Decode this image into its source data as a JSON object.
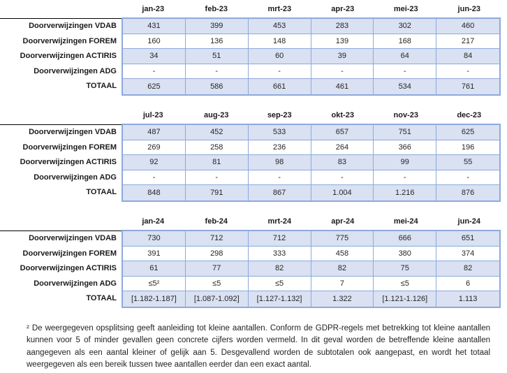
{
  "colors": {
    "cell_fill": "#d9e1f2",
    "table_border": "#8ea9db",
    "header_underline": "#000000",
    "page_background": "#ffffff",
    "text": "#1a1a1a"
  },
  "tables": [
    {
      "months": [
        "jan-23",
        "feb-23",
        "mrt-23",
        "apr-23",
        "mei-23",
        "jun-23"
      ],
      "rows": [
        {
          "label": "Doorverwijzingen VDAB",
          "values": [
            "431",
            "399",
            "453",
            "283",
            "302",
            "460"
          ]
        },
        {
          "label": "Doorverwijzingen FOREM",
          "values": [
            "160",
            "136",
            "148",
            "139",
            "168",
            "217"
          ]
        },
        {
          "label": "Doorverwijzingen ACTIRIS",
          "values": [
            "34",
            "51",
            "60",
            "39",
            "64",
            "84"
          ]
        },
        {
          "label": "Doorverwijzingen ADG",
          "values": [
            "-",
            "-",
            "-",
            "-",
            "-",
            "-"
          ]
        },
        {
          "label": "TOTAAL",
          "values": [
            "625",
            "586",
            "661",
            "461",
            "534",
            "761"
          ]
        }
      ]
    },
    {
      "months": [
        "jul-23",
        "aug-23",
        "sep-23",
        "okt-23",
        "nov-23",
        "dec-23"
      ],
      "rows": [
        {
          "label": "Doorverwijzingen VDAB",
          "values": [
            "487",
            "452",
            "533",
            "657",
            "751",
            "625"
          ]
        },
        {
          "label": "Doorverwijzingen FOREM",
          "values": [
            "269",
            "258",
            "236",
            "264",
            "366",
            "196"
          ]
        },
        {
          "label": "Doorverwijzingen ACTIRIS",
          "values": [
            "92",
            "81",
            "98",
            "83",
            "99",
            "55"
          ]
        },
        {
          "label": "Doorverwijzingen ADG",
          "values": [
            "-",
            "-",
            "-",
            "-",
            "-",
            "-"
          ]
        },
        {
          "label": "TOTAAL",
          "values": [
            "848",
            "791",
            "867",
            "1.004",
            "1.216",
            "876"
          ]
        }
      ]
    },
    {
      "months": [
        "jan-24",
        "feb-24",
        "mrt-24",
        "apr-24",
        "mei-24",
        "jun-24"
      ],
      "rows": [
        {
          "label": "Doorverwijzingen VDAB",
          "values": [
            "730",
            "712",
            "712",
            "775",
            "666",
            "651"
          ]
        },
        {
          "label": "Doorverwijzingen FOREM",
          "values": [
            "391",
            "298",
            "333",
            "458",
            "380",
            "374"
          ]
        },
        {
          "label": "Doorverwijzingen ACTIRIS",
          "values": [
            "61",
            "77",
            "82",
            "82",
            "75",
            "82"
          ]
        },
        {
          "label": "Doorverwijzingen ADG",
          "values": [
            "≤5²",
            "≤5",
            "≤5",
            "7",
            "≤5",
            "6"
          ]
        },
        {
          "label": "TOTAAL",
          "values": [
            "[1.182-1.187]",
            "[1.087-1.092]",
            "[1.127-1.132]",
            "1.322",
            "[1.121-1.126]",
            "1.113"
          ]
        }
      ]
    }
  ],
  "footnote": {
    "marker": "2",
    "text": "² De weergegeven opsplitsing geeft aanleiding tot kleine aantallen. Conform de GDPR-regels met betrekking tot kleine aantallen kunnen voor 5 of minder gevallen geen concrete cijfers worden vermeld. In dit geval worden de betreffende kleine aantallen aangegeven als een aantal kleiner of gelijk aan 5. Desgevallend worden de subtotalen ook aangepast, en wordt het totaal weergegeven als een bereik tussen twee aantallen eerder dan een exact aantal."
  }
}
